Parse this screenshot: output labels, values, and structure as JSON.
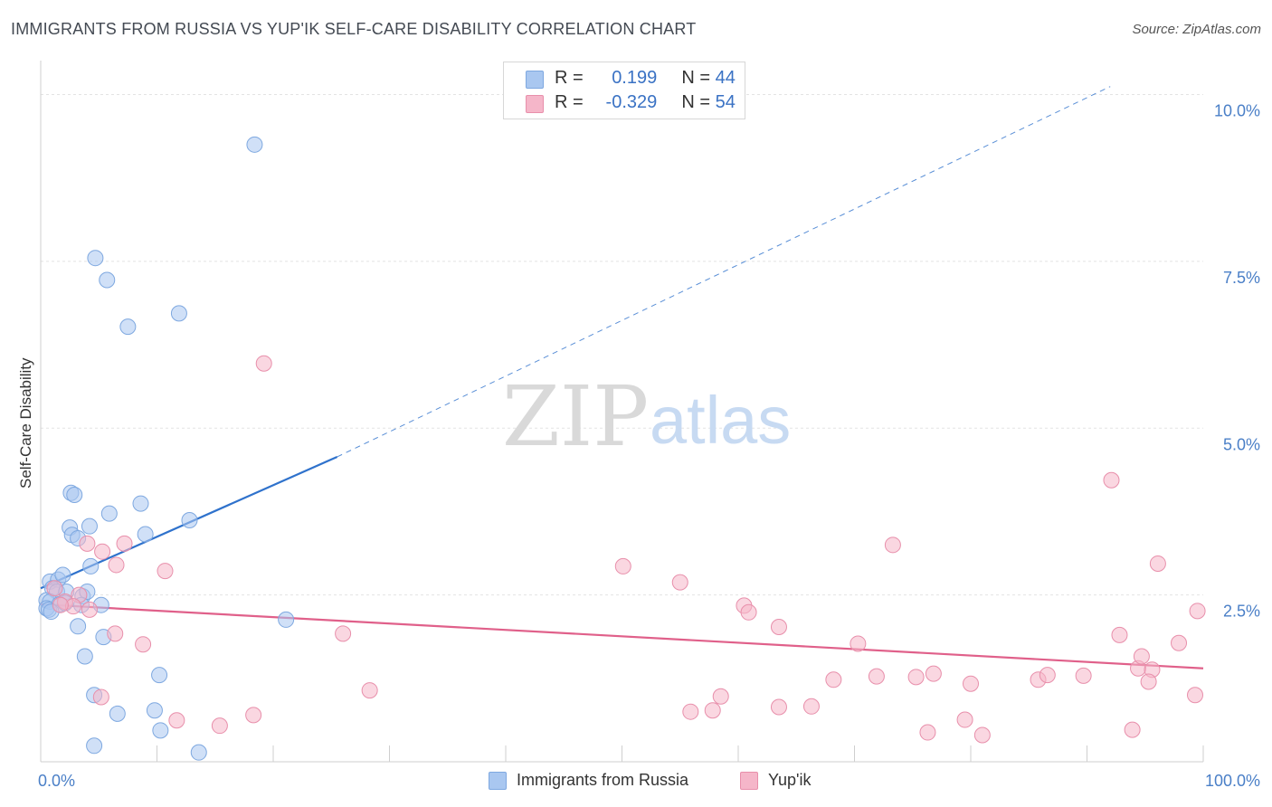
{
  "header": {
    "title": "IMMIGRANTS FROM RUSSIA VS YUP'IK SELF-CARE DISABILITY CORRELATION CHART",
    "source": "Source: ZipAtlas.com"
  },
  "watermark": {
    "zip": "ZIP",
    "atlas": "atlas"
  },
  "legend": {
    "rows": [
      {
        "r_label": "R =",
        "r_value": "0.199",
        "n_label": "N =",
        "n_value": "44",
        "color": "#a9c7f0"
      },
      {
        "r_label": "R =",
        "r_value": "-0.329",
        "n_label": "N =",
        "n_value": "54",
        "color": "#f5b6c9"
      }
    ]
  },
  "bottom_legend": {
    "items": [
      {
        "label": "Immigrants from Russia",
        "color": "#a9c7f0"
      },
      {
        "label": "Yup'ik",
        "color": "#f5b6c9"
      }
    ]
  },
  "chart_data": {
    "type": "scatter",
    "title": "IMMIGRANTS FROM RUSSIA VS YUP'IK SELF-CARE DISABILITY CORRELATION CHART",
    "xlabel": "",
    "ylabel": "Self-Care Disability",
    "xlim": [
      0,
      100
    ],
    "ylim": [
      0,
      10.4
    ],
    "x_tick_labels": [
      {
        "value": 0,
        "label": "0.0%"
      },
      {
        "value": 100,
        "label": "100.0%"
      }
    ],
    "y_tick_labels": [
      {
        "value": 2.5,
        "label": "2.5%"
      },
      {
        "value": 5.0,
        "label": "5.0%"
      },
      {
        "value": 7.5,
        "label": "7.5%"
      },
      {
        "value": 10.0,
        "label": "10.0%"
      }
    ],
    "grid": true,
    "series": [
      {
        "name": "Immigrants from Russia",
        "color": "#a9c7f0",
        "edge": "#7ea8e0",
        "line_color": "#2f72cc",
        "trend": {
          "x0": 0,
          "y0": 2.6,
          "x1": 25.5,
          "y1": 4.57,
          "dash_x1": 92,
          "dash_y1": 10.12
        },
        "points": [
          [
            18.4,
            9.25
          ],
          [
            4.7,
            7.55
          ],
          [
            5.7,
            7.22
          ],
          [
            7.5,
            6.52
          ],
          [
            11.9,
            6.72
          ],
          [
            2.6,
            4.03
          ],
          [
            2.9,
            4.0
          ],
          [
            5.9,
            3.72
          ],
          [
            8.6,
            3.87
          ],
          [
            2.5,
            3.51
          ],
          [
            2.7,
            3.4
          ],
          [
            3.2,
            3.35
          ],
          [
            4.2,
            3.53
          ],
          [
            9.0,
            3.41
          ],
          [
            12.8,
            3.62
          ],
          [
            0.8,
            2.7
          ],
          [
            1.5,
            2.73
          ],
          [
            1.9,
            2.8
          ],
          [
            4.3,
            2.93
          ],
          [
            1.0,
            2.6
          ],
          [
            1.4,
            2.55
          ],
          [
            2.2,
            2.55
          ],
          [
            3.6,
            2.48
          ],
          [
            4.0,
            2.55
          ],
          [
            0.5,
            2.42
          ],
          [
            0.8,
            2.4
          ],
          [
            1.6,
            2.36
          ],
          [
            2.1,
            2.38
          ],
          [
            3.5,
            2.35
          ],
          [
            5.2,
            2.35
          ],
          [
            0.5,
            2.3
          ],
          [
            0.7,
            2.28
          ],
          [
            0.9,
            2.25
          ],
          [
            21.1,
            2.13
          ],
          [
            3.2,
            2.03
          ],
          [
            5.4,
            1.87
          ],
          [
            3.8,
            1.58
          ],
          [
            10.2,
            1.3
          ],
          [
            4.6,
            1.0
          ],
          [
            9.8,
            0.77
          ],
          [
            6.6,
            0.72
          ],
          [
            10.3,
            0.47
          ],
          [
            4.6,
            0.24
          ],
          [
            13.6,
            0.14
          ]
        ]
      },
      {
        "name": "Yup'ik",
        "color": "#f5b6c9",
        "edge": "#e88fab",
        "line_color": "#e0608a",
        "trend": {
          "x0": 0,
          "y0": 2.36,
          "x1": 100,
          "y1": 1.4
        },
        "points": [
          [
            19.2,
            5.97
          ],
          [
            4.0,
            3.27
          ],
          [
            7.2,
            3.27
          ],
          [
            5.3,
            3.15
          ],
          [
            6.5,
            2.95
          ],
          [
            10.7,
            2.86
          ],
          [
            1.2,
            2.6
          ],
          [
            3.3,
            2.5
          ],
          [
            2.1,
            2.4
          ],
          [
            2.8,
            2.33
          ],
          [
            4.2,
            2.28
          ],
          [
            1.7,
            2.35
          ],
          [
            6.4,
            1.92
          ],
          [
            8.8,
            1.76
          ],
          [
            26.0,
            1.92
          ],
          [
            5.2,
            0.97
          ],
          [
            11.7,
            0.62
          ],
          [
            15.4,
            0.54
          ],
          [
            18.3,
            0.7
          ],
          [
            28.3,
            1.07
          ],
          [
            50.1,
            2.93
          ],
          [
            55.0,
            2.69
          ],
          [
            60.5,
            2.34
          ],
          [
            60.9,
            2.24
          ],
          [
            63.5,
            2.02
          ],
          [
            73.3,
            3.25
          ],
          [
            70.3,
            1.77
          ],
          [
            68.2,
            1.23
          ],
          [
            71.9,
            1.28
          ],
          [
            75.3,
            1.27
          ],
          [
            76.8,
            1.32
          ],
          [
            80.0,
            1.17
          ],
          [
            85.8,
            1.23
          ],
          [
            86.6,
            1.3
          ],
          [
            89.7,
            1.29
          ],
          [
            92.1,
            4.22
          ],
          [
            92.8,
            1.9
          ],
          [
            94.4,
            1.4
          ],
          [
            94.7,
            1.58
          ],
          [
            95.6,
            1.38
          ],
          [
            95.3,
            1.2
          ],
          [
            96.1,
            2.97
          ],
          [
            97.9,
            1.78
          ],
          [
            99.5,
            2.26
          ],
          [
            99.3,
            1.0
          ],
          [
            58.5,
            0.98
          ],
          [
            57.8,
            0.77
          ],
          [
            55.9,
            0.75
          ],
          [
            63.5,
            0.82
          ],
          [
            66.3,
            0.83
          ],
          [
            79.5,
            0.63
          ],
          [
            81.0,
            0.4
          ],
          [
            76.3,
            0.44
          ],
          [
            93.9,
            0.48
          ]
        ]
      }
    ]
  }
}
